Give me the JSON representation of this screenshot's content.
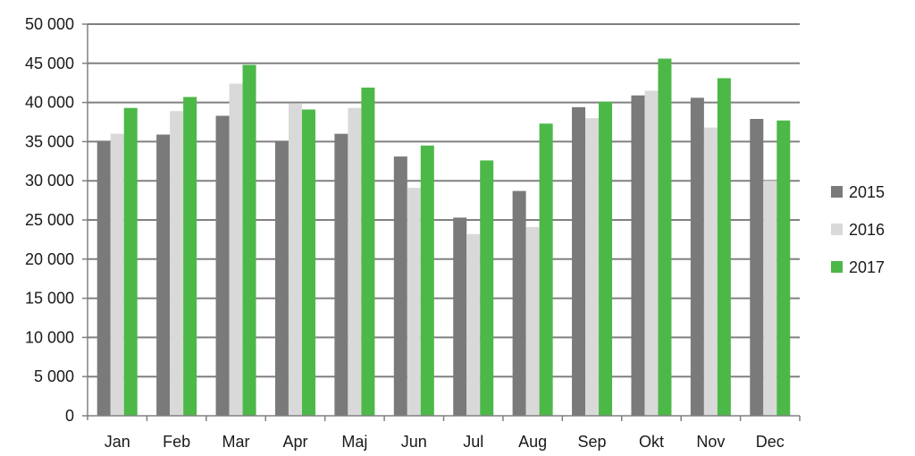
{
  "chart_data": {
    "type": "bar",
    "title": "",
    "xlabel": "",
    "ylabel": "",
    "categories": [
      "Jan",
      "Feb",
      "Mar",
      "Apr",
      "Maj",
      "Jun",
      "Jul",
      "Aug",
      "Sep",
      "Okt",
      "Nov",
      "Dec"
    ],
    "series": [
      {
        "name": "2015",
        "color": "#7a7a7a",
        "values": [
          35100,
          35900,
          38300,
          35100,
          36000,
          33100,
          25300,
          28700,
          39400,
          40900,
          40600,
          37900
        ]
      },
      {
        "name": "2016",
        "color": "#d9d9d9",
        "values": [
          36000,
          38900,
          42400,
          39900,
          39300,
          29100,
          23200,
          24100,
          38000,
          41500,
          36800,
          30000
        ]
      },
      {
        "name": "2017",
        "color": "#4cb848",
        "values": [
          39300,
          40700,
          44800,
          39100,
          41900,
          34500,
          32600,
          37300,
          40100,
          45600,
          43100,
          37700
        ]
      }
    ],
    "ylim": [
      0,
      50000
    ],
    "ytick_values": [
      0,
      5000,
      10000,
      15000,
      20000,
      25000,
      30000,
      35000,
      40000,
      45000,
      50000
    ],
    "ytick_labels": [
      "0",
      "5 000",
      "10 000",
      "15 000",
      "20 000",
      "25 000",
      "30 000",
      "35 000",
      "40 000",
      "45 000",
      "50 000"
    ],
    "grid": true,
    "gridline_color": "#808080",
    "legend_position": "right"
  }
}
